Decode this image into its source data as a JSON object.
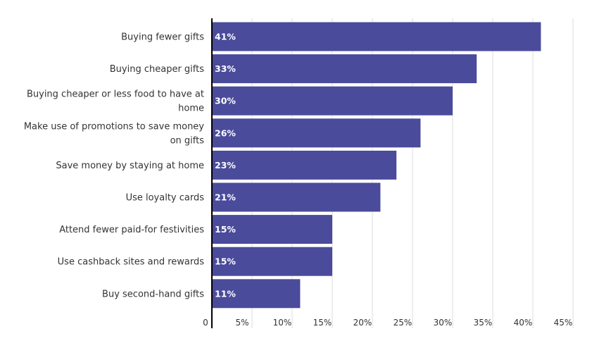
{
  "chart_data": {
    "type": "bar",
    "orientation": "horizontal",
    "categories": [
      [
        "Buying fewer gifts"
      ],
      [
        "Buying cheaper gifts"
      ],
      [
        "Buying cheaper or less food to have at",
        "home"
      ],
      [
        "Make use of promotions to save money",
        "on gifts"
      ],
      [
        "Save money by staying at home"
      ],
      [
        "Use loyalty cards"
      ],
      [
        "Attend fewer paid-for festivities"
      ],
      [
        "Use cashback sites and rewards"
      ],
      [
        "Buy second-hand gifts"
      ]
    ],
    "values": [
      41,
      33,
      30,
      26,
      23,
      21,
      15,
      15,
      11
    ],
    "value_labels": [
      "41%",
      "33%",
      "30%",
      "26%",
      "23%",
      "21%",
      "15%",
      "15%",
      "11%"
    ],
    "xlim": [
      0,
      45
    ],
    "x_ticks": [
      0,
      5,
      10,
      15,
      20,
      25,
      30,
      35,
      40,
      45
    ],
    "x_tick_labels": [
      "0",
      "5%",
      "10%",
      "15%",
      "20%",
      "25%",
      "30%",
      "35%",
      "40%",
      "45%"
    ],
    "grid": true,
    "bar_color": "#4a4b9b",
    "title": "",
    "xlabel": "",
    "ylabel": ""
  }
}
